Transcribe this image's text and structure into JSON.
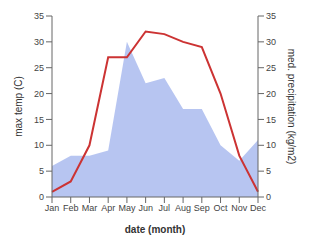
{
  "chart_data": {
    "type": "line",
    "xlabel": "date (month)",
    "ylabel": "max temp (C)",
    "y2label": "med. precipitation (kg/m2)",
    "categories": [
      "Jan",
      "Feb",
      "Mar",
      "Apr",
      "May",
      "Jun",
      "Jul",
      "Aug",
      "Sep",
      "Oct",
      "Nov",
      "Dec"
    ],
    "series": [
      {
        "type": "area",
        "axis": "y2",
        "color": "#aabbee",
        "values": [
          6,
          8,
          8,
          9,
          30,
          22,
          23,
          17,
          17,
          10,
          7,
          11
        ]
      },
      {
        "type": "line",
        "color": "#cc3333",
        "values": [
          1,
          3,
          10,
          27,
          27,
          32,
          31.5,
          30,
          29,
          20,
          8,
          1
        ]
      }
    ],
    "ylim": [
      0,
      35
    ],
    "yticks": [
      0,
      5,
      10,
      15,
      20,
      25,
      30,
      35
    ],
    "y2lim": [
      0,
      35
    ],
    "y2ticks": [
      0,
      5,
      10,
      15,
      20,
      25,
      30,
      35
    ],
    "grid": false
  }
}
